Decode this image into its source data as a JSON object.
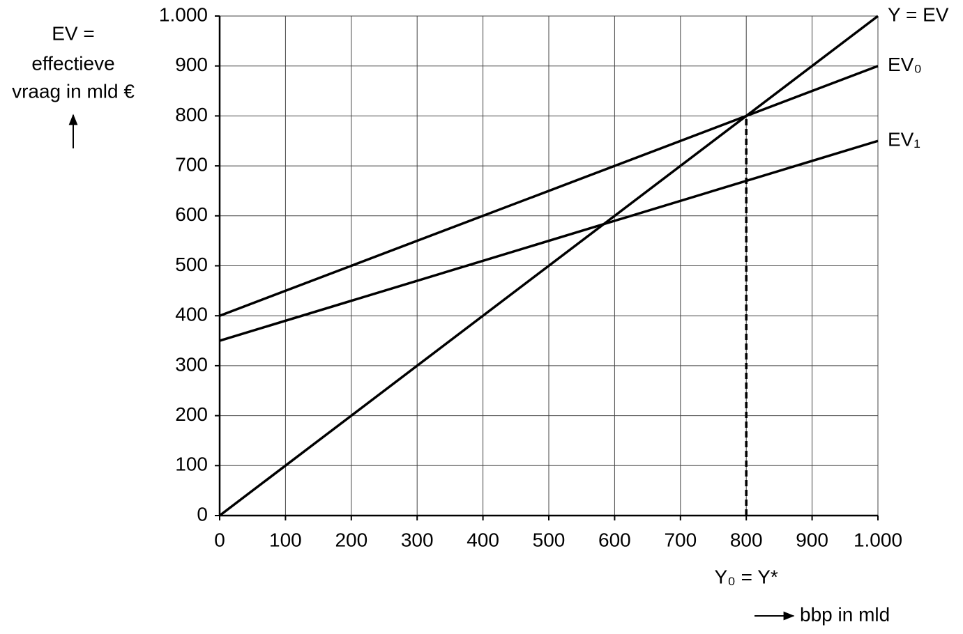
{
  "chart_data": {
    "type": "line",
    "ylabel": [
      "EV =",
      "effectieve",
      "vraag in mld €"
    ],
    "xlabel": "bbp in mld",
    "x": [
      0,
      1000
    ],
    "series": [
      {
        "name": "Y = EV",
        "color": "#000000",
        "values": [
          0,
          1000
        ]
      },
      {
        "name": "EV₀",
        "color": "#000000",
        "values": [
          400,
          900
        ]
      },
      {
        "name": "EV₁",
        "color": "#000000",
        "values": [
          350,
          750
        ]
      }
    ],
    "vline": {
      "x": 800,
      "y": 800,
      "label": "Y₀ = Y*"
    },
    "xlim": [
      0,
      1000
    ],
    "ylim": [
      0,
      1000
    ],
    "xticks": [
      0,
      100,
      200,
      300,
      400,
      500,
      600,
      700,
      800,
      900,
      {
        "value": 1000,
        "label": "1.000"
      }
    ],
    "yticks": [
      0,
      100,
      200,
      300,
      400,
      500,
      600,
      700,
      800,
      900,
      {
        "value": 1000,
        "label": "1.000"
      }
    ],
    "grid": true
  }
}
